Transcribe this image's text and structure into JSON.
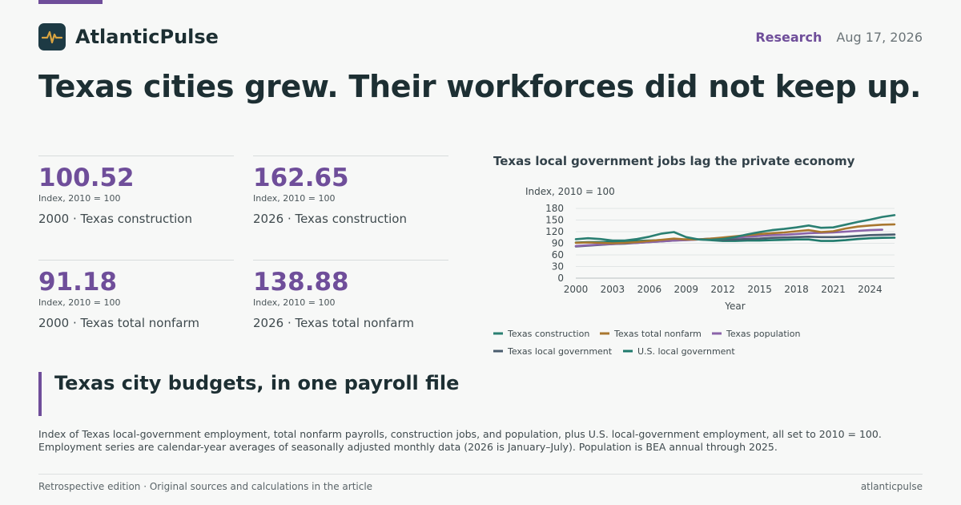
{
  "brand": {
    "name": "AtlanticPulse",
    "logo_icon": "pulse-icon"
  },
  "header": {
    "section": "Research",
    "date": "Aug 17, 2026"
  },
  "headline": "Texas cities grew. Their workforces did not keep up.",
  "stats": [
    {
      "value": "100.52",
      "unit": "Index, 2010 = 100",
      "label": "2000 · Texas construction"
    },
    {
      "value": "162.65",
      "unit": "Index, 2010 = 100",
      "label": "2026 · Texas construction"
    },
    {
      "value": "91.18",
      "unit": "Index, 2010 = 100",
      "label": "2000 · Texas total nonfarm"
    },
    {
      "value": "138.88",
      "unit": "Index, 2010 = 100",
      "label": "2026 · Texas total nonfarm"
    }
  ],
  "chart_data": {
    "type": "line",
    "title": "Texas local government jobs lag the private economy",
    "ylabel": "Index, 2010 = 100",
    "xlabel": "Year",
    "ylim": [
      0,
      180
    ],
    "yticks": [
      0,
      30,
      60,
      90,
      120,
      150,
      180
    ],
    "xlim": [
      2000,
      2026
    ],
    "xticks": [
      2000,
      2003,
      2006,
      2009,
      2012,
      2015,
      2018,
      2021,
      2024
    ],
    "grid": true,
    "legend_position": "bottom",
    "x": [
      2000,
      2001,
      2002,
      2003,
      2004,
      2005,
      2006,
      2007,
      2008,
      2009,
      2010,
      2011,
      2012,
      2013,
      2014,
      2015,
      2016,
      2017,
      2018,
      2019,
      2020,
      2021,
      2022,
      2023,
      2024,
      2025,
      2026
    ],
    "series": [
      {
        "name": "Texas construction",
        "color": "#2a7f72",
        "values": [
          100.52,
          103,
          101,
          97,
          97,
          101,
          107,
          115,
          119,
          106,
          100,
          99,
          101,
          106,
          113,
          119,
          124,
          127,
          131,
          136,
          130,
          131,
          138,
          145,
          151,
          158,
          162.65
        ]
      },
      {
        "name": "Texas total nonfarm",
        "color": "#a9772f",
        "values": [
          91.18,
          92,
          91,
          90,
          91,
          93,
          96,
          99,
          102,
          100,
          100,
          102,
          105,
          108,
          111,
          114,
          116,
          118,
          121,
          124,
          119,
          121,
          128,
          133,
          136,
          138,
          138.88
        ]
      },
      {
        "name": "Texas population",
        "color": "#8a63a9",
        "values": [
          83,
          85,
          87,
          88,
          90,
          91,
          93,
          95,
          97,
          98,
          100,
          102,
          103,
          105,
          107,
          109,
          111,
          112,
          114,
          116,
          117,
          118,
          120,
          122,
          124,
          125,
          null
        ]
      },
      {
        "name": "Texas local government",
        "color": "#495c6e",
        "values": [
          82,
          84,
          86,
          88,
          89,
          91,
          93,
          95,
          97,
          99,
          100,
          100,
          99,
          100,
          101,
          102,
          104,
          105,
          106,
          107,
          106,
          106,
          107,
          109,
          111,
          112,
          112.5
        ]
      },
      {
        "name": "U.S. local government",
        "color": "#1f7a6c",
        "values": [
          92,
          93,
          93,
          94,
          95,
          96,
          97,
          98,
          99,
          100,
          100,
          98,
          96,
          96,
          97,
          97,
          98,
          99,
          100,
          100,
          96,
          96,
          98,
          101,
          103,
          104,
          104.5
        ]
      }
    ]
  },
  "subhead": "Texas city budgets, in one payroll file",
  "description": "Index of Texas local-government employment, total nonfarm payrolls, construction jobs, and population, plus U.S. local-government employment, all set to 2010 = 100. Employment series are calendar-year averages of seasonally adjusted monthly data (2026 is January–July). Population is BEA annual through 2025.",
  "footer": {
    "left": "Retrospective edition · Original sources and calculations in the article",
    "right": "atlanticpulse"
  }
}
